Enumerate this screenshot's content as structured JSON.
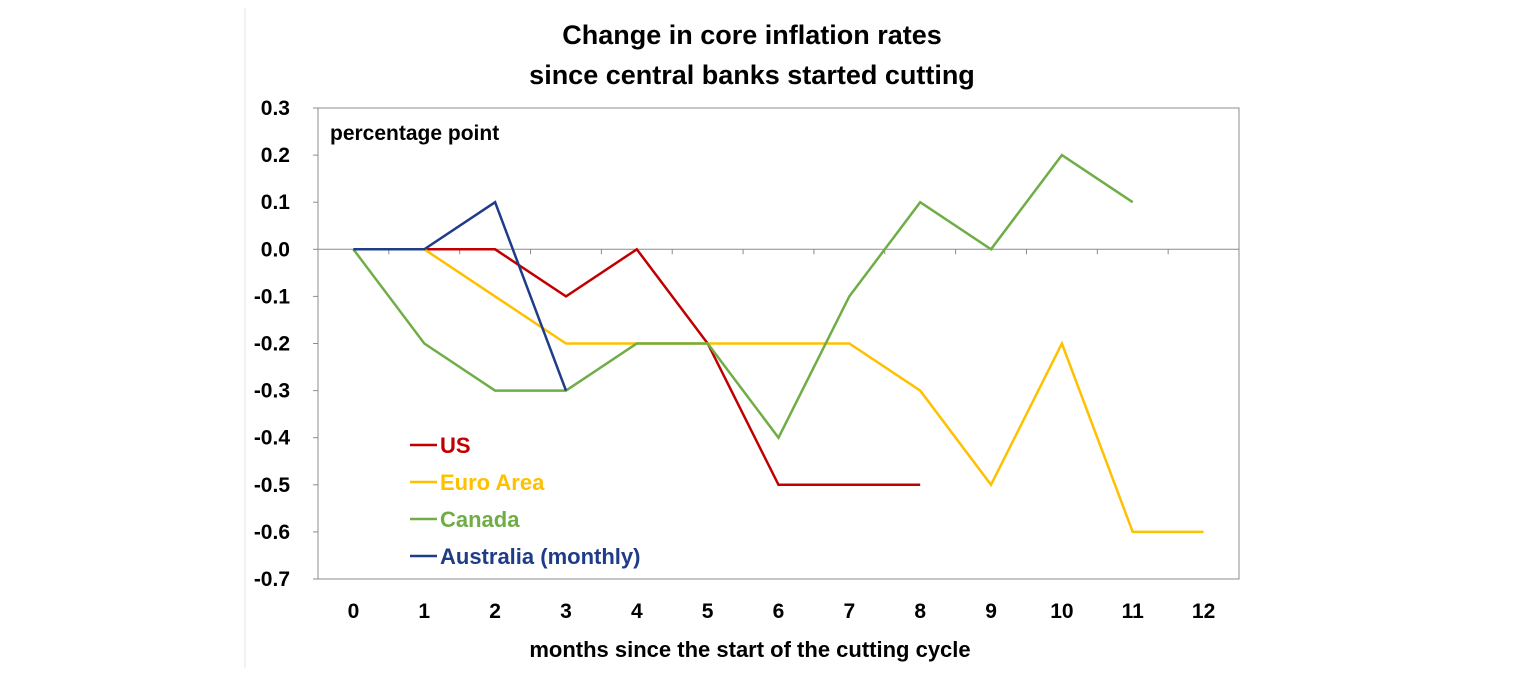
{
  "chart_data": {
    "type": "line",
    "title": [
      "Change in core inflation rates",
      "since central banks started cutting"
    ],
    "units_label": "percentage point",
    "xlabel": "months since the start of the cutting cycle",
    "ylabel": "",
    "x": [
      0,
      1,
      2,
      3,
      4,
      5,
      6,
      7,
      8,
      9,
      10,
      11,
      12
    ],
    "x_tick_labels": [
      "0",
      "1",
      "2",
      "3",
      "4",
      "5",
      "6",
      "7",
      "8",
      "9",
      "10",
      "11",
      "12"
    ],
    "xlim": [
      -0.5,
      12.5
    ],
    "ylim": [
      -0.7,
      0.3
    ],
    "y_ticks": [
      0.3,
      0.2,
      0.1,
      0.0,
      -0.1,
      -0.2,
      -0.3,
      -0.4,
      -0.5,
      -0.6,
      -0.7
    ],
    "y_tick_labels": [
      "0.3",
      "0.2",
      "0.1",
      "0.0",
      "-0.1",
      "-0.2",
      "-0.3",
      "-0.4",
      "-0.5",
      "-0.6",
      "-0.7"
    ],
    "grid": false,
    "legend_position": "lower-left",
    "series": [
      {
        "name": "US",
        "color": "#c00000",
        "x": [
          0,
          1,
          2,
          3,
          4,
          5,
          6,
          7,
          8
        ],
        "values": [
          0,
          0,
          0,
          -0.1,
          0,
          -0.2,
          -0.5,
          -0.5,
          -0.5
        ]
      },
      {
        "name": "Euro Area",
        "color": "#ffc000",
        "x": [
          0,
          1,
          2,
          3,
          4,
          5,
          6,
          7,
          8,
          9,
          10,
          11,
          12
        ],
        "values": [
          0,
          0,
          -0.1,
          -0.2,
          -0.2,
          -0.2,
          -0.2,
          -0.2,
          -0.3,
          -0.5,
          -0.2,
          -0.6,
          -0.6
        ]
      },
      {
        "name": "Canada",
        "color": "#70ad47",
        "x": [
          0,
          1,
          2,
          3,
          4,
          5,
          6,
          7,
          8,
          9,
          10,
          11
        ],
        "values": [
          0,
          -0.2,
          -0.3,
          -0.3,
          -0.2,
          -0.2,
          -0.4,
          -0.1,
          0.1,
          0,
          0.2,
          0.1
        ]
      },
      {
        "name": "Australia (monthly)",
        "color": "#1f3c88",
        "x": [
          0,
          1,
          2,
          3
        ],
        "values": [
          0,
          0,
          0.1,
          -0.3
        ]
      }
    ]
  }
}
